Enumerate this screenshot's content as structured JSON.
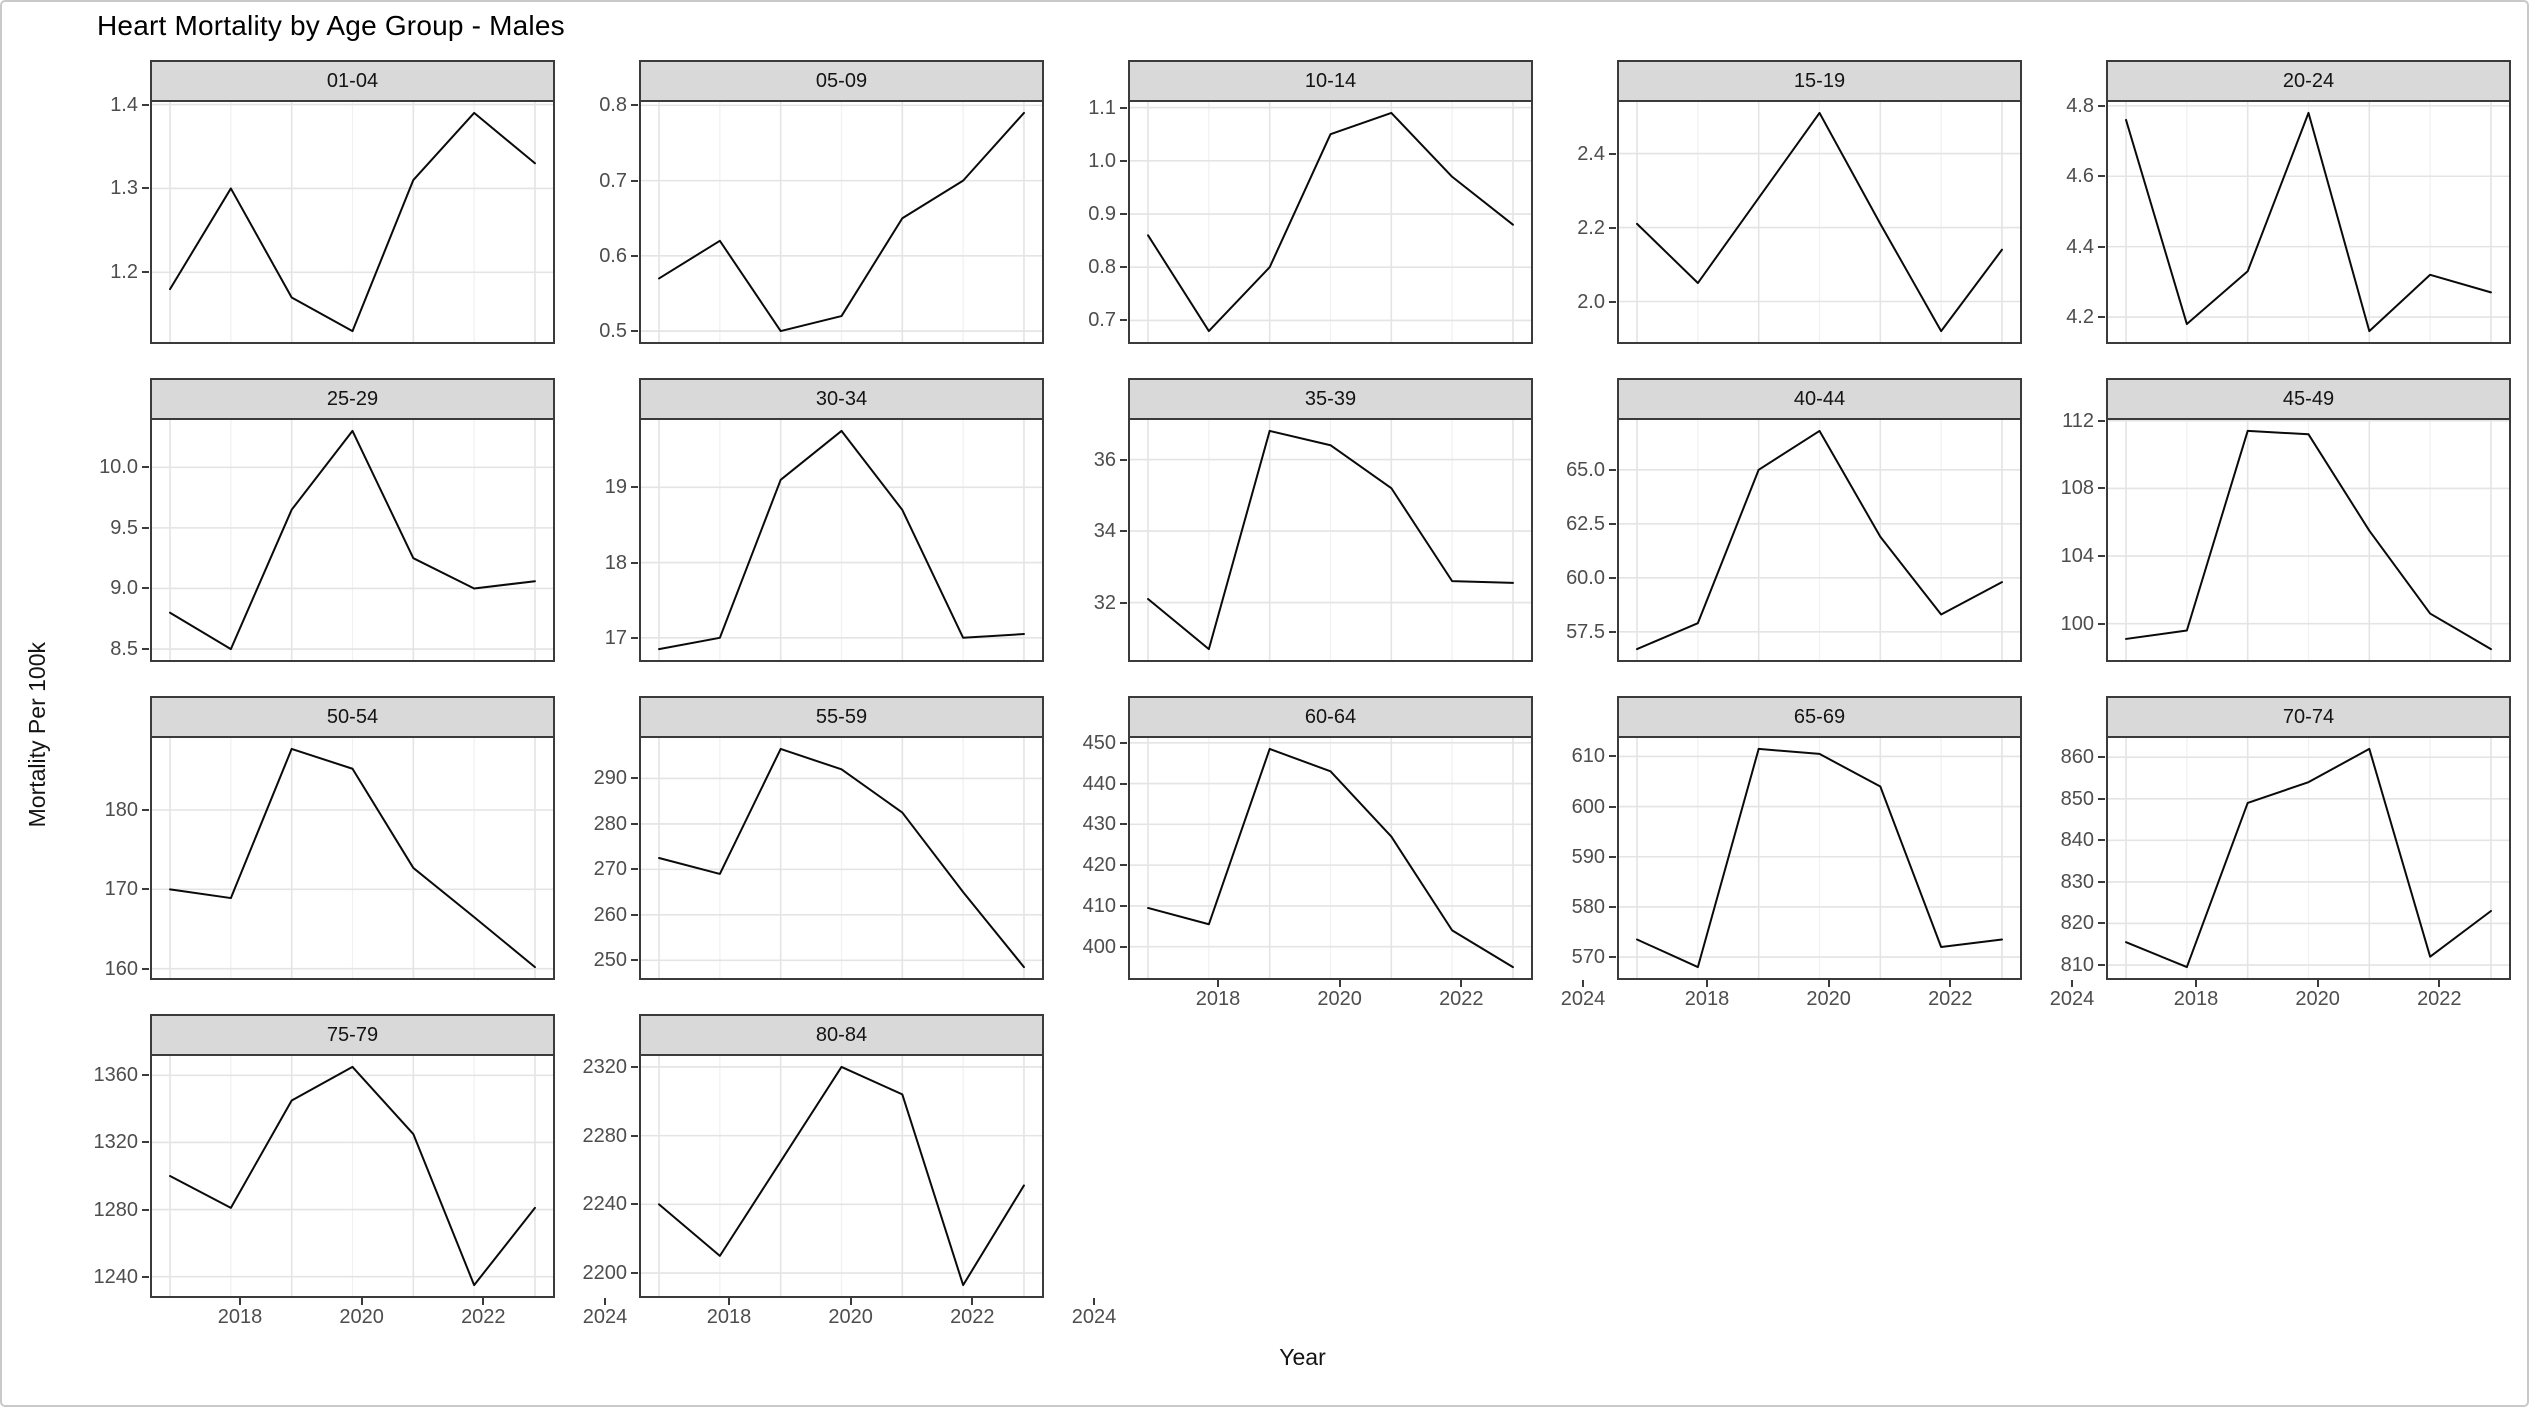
{
  "title": "Heart Mortality by Age Group - Males",
  "x_axis_label": "Year",
  "y_axis_label": "Mortality Per 100k",
  "colors": {
    "strip_bg": "#d9d9d9",
    "panel_bg": "#ffffff",
    "panel_border": "#3b3b3b",
    "grid_major": "#e4e4e4",
    "grid_minor": "#f1f1f1",
    "line": "#0a0a0a",
    "axis_text": "#4d4d4d",
    "strip_text": "#141414",
    "outer_border": "#c9c9c9"
  },
  "chart_data": {
    "type": "line",
    "x": [
      2018,
      2019,
      2020,
      2021,
      2022,
      2023,
      2024
    ],
    "x_major_ticks": [
      2018,
      2020,
      2022,
      2024
    ],
    "x_minor_ticks": [
      2019,
      2021,
      2023
    ],
    "x_tick_labels": [
      "2018",
      "2020",
      "2022",
      "2024"
    ],
    "grid": true,
    "legend": "none",
    "facets": [
      {
        "label": "01-04",
        "values": [
          1.18,
          1.3,
          1.17,
          1.13,
          1.31,
          1.39,
          1.33
        ],
        "y_tick_values": [
          1.2,
          1.3,
          1.4
        ],
        "y_tick_labels": [
          "1.2",
          "1.3",
          "1.4"
        ],
        "bottom_axis": false
      },
      {
        "label": "05-09",
        "values": [
          0.57,
          0.62,
          0.5,
          0.52,
          0.65,
          0.7,
          0.79
        ],
        "y_tick_values": [
          0.5,
          0.6,
          0.7,
          0.8
        ],
        "y_tick_labels": [
          "0.5",
          "0.6",
          "0.7",
          "0.8"
        ],
        "bottom_axis": false
      },
      {
        "label": "10-14",
        "values": [
          0.86,
          0.68,
          0.8,
          1.05,
          1.09,
          0.97,
          0.88
        ],
        "y_tick_values": [
          0.7,
          0.8,
          0.9,
          1.0,
          1.1
        ],
        "y_tick_labels": [
          "0.7",
          "0.8",
          "0.9",
          "1.0",
          "1.1"
        ],
        "bottom_axis": false
      },
      {
        "label": "15-19",
        "values": [
          2.21,
          2.05,
          2.28,
          2.51,
          2.21,
          1.92,
          2.14
        ],
        "y_tick_values": [
          2.0,
          2.2,
          2.4
        ],
        "y_tick_labels": [
          "2.0",
          "2.2",
          "2.4"
        ],
        "bottom_axis": false
      },
      {
        "label": "20-24",
        "values": [
          4.76,
          4.18,
          4.33,
          4.78,
          4.16,
          4.32,
          4.27
        ],
        "y_tick_values": [
          4.2,
          4.4,
          4.6,
          4.8
        ],
        "y_tick_labels": [
          "4.2",
          "4.4",
          "4.6",
          "4.8"
        ],
        "bottom_axis": false
      },
      {
        "label": "25-29",
        "values": [
          8.8,
          8.5,
          9.65,
          10.3,
          9.25,
          9.0,
          9.06
        ],
        "y_tick_values": [
          8.5,
          9.0,
          9.5,
          10.0
        ],
        "y_tick_labels": [
          "8.5",
          "9.0",
          "9.5",
          "10.0"
        ],
        "bottom_axis": false
      },
      {
        "label": "30-34",
        "values": [
          16.85,
          17.0,
          19.1,
          19.75,
          18.7,
          17.0,
          17.05
        ],
        "y_tick_values": [
          17,
          18,
          19
        ],
        "y_tick_labels": [
          "17",
          "18",
          "19"
        ],
        "bottom_axis": false
      },
      {
        "label": "35-39",
        "values": [
          32.1,
          30.7,
          36.8,
          36.4,
          35.2,
          32.6,
          32.55
        ],
        "y_tick_values": [
          32,
          34,
          36
        ],
        "y_tick_labels": [
          "32",
          "34",
          "36"
        ],
        "bottom_axis": false
      },
      {
        "label": "40-44",
        "values": [
          56.7,
          57.9,
          65.0,
          66.8,
          61.9,
          58.3,
          59.8
        ],
        "y_tick_values": [
          57.5,
          60.0,
          62.5,
          65.0
        ],
        "y_tick_labels": [
          "57.5",
          "60.0",
          "62.5",
          "65.0"
        ],
        "bottom_axis": false
      },
      {
        "label": "45-49",
        "values": [
          99.1,
          99.6,
          111.4,
          111.2,
          105.5,
          100.6,
          98.5
        ],
        "y_tick_values": [
          100,
          104,
          108,
          112
        ],
        "y_tick_labels": [
          "100",
          "104",
          "108",
          "112"
        ],
        "bottom_axis": false
      },
      {
        "label": "50-54",
        "values": [
          170.0,
          168.9,
          187.7,
          185.2,
          172.7,
          166.5,
          160.2
        ],
        "y_tick_values": [
          160,
          170,
          180
        ],
        "y_tick_labels": [
          "160",
          "170",
          "180"
        ],
        "bottom_axis": false
      },
      {
        "label": "55-59",
        "values": [
          272.5,
          269.0,
          296.5,
          292.0,
          282.5,
          265.0,
          248.5
        ],
        "y_tick_values": [
          250,
          260,
          270,
          280,
          290
        ],
        "y_tick_labels": [
          "250",
          "260",
          "270",
          "280",
          "290"
        ],
        "bottom_axis": false
      },
      {
        "label": "60-64",
        "values": [
          409.5,
          405.5,
          448.5,
          443.0,
          427.0,
          404.0,
          395.0
        ],
        "y_tick_values": [
          400,
          410,
          420,
          430,
          440,
          450
        ],
        "y_tick_labels": [
          "400",
          "410",
          "420",
          "430",
          "440",
          "450"
        ],
        "bottom_axis": true
      },
      {
        "label": "65-69",
        "values": [
          573.5,
          568.0,
          611.5,
          610.5,
          604.0,
          572.0,
          573.5
        ],
        "y_tick_values": [
          570,
          580,
          590,
          600,
          610
        ],
        "y_tick_labels": [
          "570",
          "580",
          "590",
          "600",
          "610"
        ],
        "bottom_axis": true
      },
      {
        "label": "70-74",
        "values": [
          815.5,
          809.5,
          849.0,
          854.0,
          862.0,
          812.0,
          823.0
        ],
        "y_tick_values": [
          810,
          820,
          830,
          840,
          850,
          860
        ],
        "y_tick_labels": [
          "810",
          "820",
          "830",
          "840",
          "850",
          "860"
        ],
        "bottom_axis": true
      },
      {
        "label": "75-79",
        "values": [
          1300,
          1281,
          1345,
          1365,
          1325,
          1235,
          1281
        ],
        "y_tick_values": [
          1240,
          1280,
          1320,
          1360
        ],
        "y_tick_labels": [
          "1240",
          "1280",
          "1320",
          "1360"
        ],
        "bottom_axis": true
      },
      {
        "label": "80-84",
        "values": [
          2240,
          2210,
          2265,
          2320,
          2304,
          2193,
          2251
        ],
        "y_tick_values": [
          2200,
          2240,
          2280,
          2320
        ],
        "y_tick_labels": [
          "2200",
          "2240",
          "2280",
          "2320"
        ],
        "bottom_axis": true
      }
    ]
  }
}
